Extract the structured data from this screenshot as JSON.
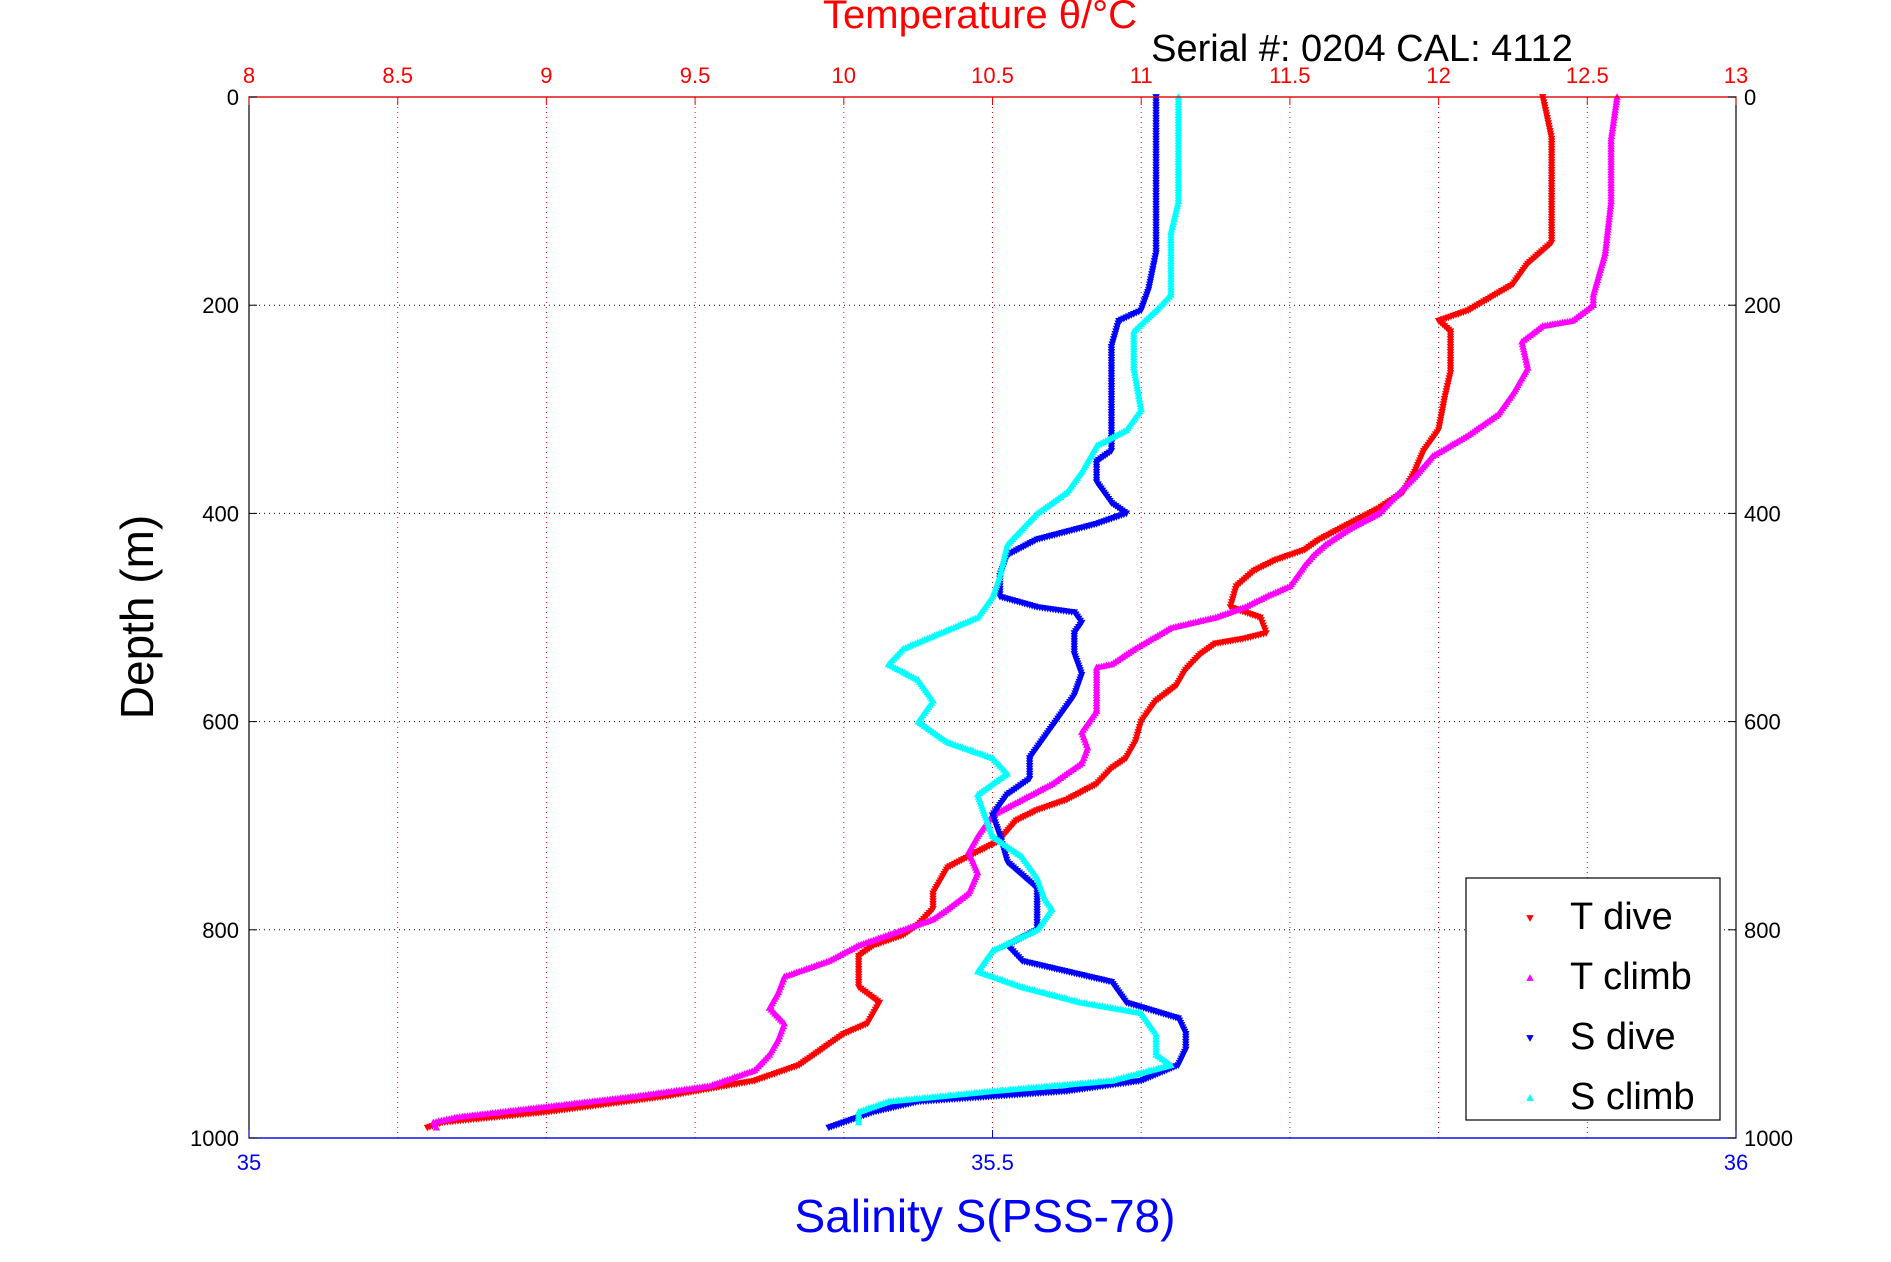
{
  "chart_data": {
    "type": "scatter",
    "title": "Temperature θ/°C",
    "subtitle": "Serial #: 0204  CAL: 4112",
    "ylabel": "Depth (m)",
    "xlabel_bottom": "Salinity S(PSS-78)",
    "xlabel_top": "Temperature θ/°C",
    "y_reversed": true,
    "ylim": [
      0,
      1000
    ],
    "x_top_lim": [
      8,
      13
    ],
    "x_bottom_lim": [
      35,
      36
    ],
    "grid": true,
    "legend_position": "bottom-right",
    "x_top_ticks": [
      "8",
      "8.5",
      "9",
      "9.5",
      "10",
      "10.5",
      "11",
      "11.5",
      "12",
      "12.5",
      "13"
    ],
    "x_bottom_ticks": [
      "35",
      "35.5",
      "36"
    ],
    "y_ticks": [
      "0",
      "200",
      "400",
      "600",
      "800",
      "1000"
    ],
    "colors": {
      "temperature_axis": "#ff0000",
      "salinity_axis": "#0000ff",
      "grid_vertical": "#ff0000",
      "grid_horizontal": "#000000"
    },
    "series": [
      {
        "name": "T dive",
        "axis": "temperature",
        "color": "#ff0000",
        "marker": "down-triangle",
        "points": [
          [
            12.35,
            0
          ],
          [
            12.38,
            40
          ],
          [
            12.38,
            100
          ],
          [
            12.38,
            140
          ],
          [
            12.3,
            160
          ],
          [
            12.25,
            180
          ],
          [
            12.1,
            205
          ],
          [
            12.0,
            215
          ],
          [
            12.04,
            225
          ],
          [
            12.04,
            245
          ],
          [
            12.04,
            265
          ],
          [
            12.02,
            290
          ],
          [
            12.0,
            320
          ],
          [
            11.95,
            340
          ],
          [
            11.92,
            360
          ],
          [
            11.88,
            380
          ],
          [
            11.8,
            395
          ],
          [
            11.7,
            410
          ],
          [
            11.6,
            425
          ],
          [
            11.55,
            435
          ],
          [
            11.45,
            445
          ],
          [
            11.38,
            455
          ],
          [
            11.32,
            470
          ],
          [
            11.3,
            490
          ],
          [
            11.4,
            500
          ],
          [
            11.42,
            515
          ],
          [
            11.35,
            520
          ],
          [
            11.25,
            525
          ],
          [
            11.2,
            535
          ],
          [
            11.15,
            550
          ],
          [
            11.12,
            565
          ],
          [
            11.05,
            580
          ],
          [
            11.0,
            600
          ],
          [
            10.98,
            620
          ],
          [
            10.95,
            635
          ],
          [
            10.9,
            645
          ],
          [
            10.85,
            660
          ],
          [
            10.75,
            675
          ],
          [
            10.65,
            685
          ],
          [
            10.58,
            695
          ],
          [
            10.52,
            715
          ],
          [
            10.45,
            725
          ],
          [
            10.35,
            740
          ],
          [
            10.3,
            765
          ],
          [
            10.3,
            780
          ],
          [
            10.25,
            795
          ],
          [
            10.2,
            805
          ],
          [
            10.1,
            815
          ],
          [
            10.05,
            825
          ],
          [
            10.05,
            840
          ],
          [
            10.05,
            855
          ],
          [
            10.12,
            870
          ],
          [
            10.08,
            890
          ],
          [
            10.0,
            900
          ],
          [
            9.95,
            910
          ],
          [
            9.9,
            920
          ],
          [
            9.85,
            930
          ],
          [
            9.7,
            945
          ],
          [
            9.4,
            960
          ],
          [
            9.0,
            975
          ],
          [
            8.65,
            985
          ],
          [
            8.6,
            990
          ]
        ]
      },
      {
        "name": "T climb",
        "axis": "temperature",
        "color": "#ff00ff",
        "marker": "up-triangle",
        "points": [
          [
            12.6,
            0
          ],
          [
            12.58,
            40
          ],
          [
            12.58,
            100
          ],
          [
            12.56,
            150
          ],
          [
            12.52,
            190
          ],
          [
            12.52,
            200
          ],
          [
            12.45,
            215
          ],
          [
            12.35,
            220
          ],
          [
            12.28,
            235
          ],
          [
            12.3,
            260
          ],
          [
            12.25,
            285
          ],
          [
            12.2,
            305
          ],
          [
            12.1,
            325
          ],
          [
            11.98,
            345
          ],
          [
            11.92,
            365
          ],
          [
            11.85,
            385
          ],
          [
            11.8,
            400
          ],
          [
            11.7,
            415
          ],
          [
            11.62,
            430
          ],
          [
            11.58,
            440
          ],
          [
            11.55,
            450
          ],
          [
            11.5,
            470
          ],
          [
            11.42,
            480
          ],
          [
            11.35,
            490
          ],
          [
            11.25,
            500
          ],
          [
            11.1,
            510
          ],
          [
            10.98,
            530
          ],
          [
            10.9,
            545
          ],
          [
            10.85,
            548
          ],
          [
            10.85,
            570
          ],
          [
            10.85,
            590
          ],
          [
            10.8,
            610
          ],
          [
            10.82,
            625
          ],
          [
            10.8,
            640
          ],
          [
            10.7,
            660
          ],
          [
            10.6,
            675
          ],
          [
            10.5,
            690
          ],
          [
            10.45,
            710
          ],
          [
            10.42,
            725
          ],
          [
            10.45,
            745
          ],
          [
            10.42,
            765
          ],
          [
            10.35,
            780
          ],
          [
            10.3,
            790
          ],
          [
            10.2,
            800
          ],
          [
            10.05,
            815
          ],
          [
            9.95,
            830
          ],
          [
            9.8,
            845
          ],
          [
            9.78,
            860
          ],
          [
            9.75,
            875
          ],
          [
            9.8,
            890
          ],
          [
            9.78,
            905
          ],
          [
            9.75,
            920
          ],
          [
            9.7,
            935
          ],
          [
            9.55,
            950
          ],
          [
            9.3,
            960
          ],
          [
            9.0,
            970
          ],
          [
            8.7,
            980
          ],
          [
            8.62,
            985
          ],
          [
            8.63,
            990
          ]
        ]
      },
      {
        "name": "S dive",
        "axis": "salinity",
        "color": "#0000ff",
        "marker": "down-triangle",
        "points": [
          [
            35.61,
            0
          ],
          [
            35.61,
            50
          ],
          [
            35.61,
            100
          ],
          [
            35.61,
            150
          ],
          [
            35.605,
            185
          ],
          [
            35.6,
            205
          ],
          [
            35.585,
            215
          ],
          [
            35.58,
            240
          ],
          [
            35.58,
            280
          ],
          [
            35.58,
            320
          ],
          [
            35.58,
            340
          ],
          [
            35.57,
            350
          ],
          [
            35.57,
            370
          ],
          [
            35.58,
            390
          ],
          [
            35.59,
            400
          ],
          [
            35.57,
            410
          ],
          [
            35.53,
            425
          ],
          [
            35.51,
            440
          ],
          [
            35.505,
            460
          ],
          [
            35.505,
            480
          ],
          [
            35.53,
            490
          ],
          [
            35.555,
            495
          ],
          [
            35.56,
            505
          ],
          [
            35.555,
            515
          ],
          [
            35.555,
            535
          ],
          [
            35.56,
            555
          ],
          [
            35.555,
            575
          ],
          [
            35.545,
            595
          ],
          [
            35.535,
            615
          ],
          [
            35.525,
            635
          ],
          [
            35.525,
            655
          ],
          [
            35.51,
            670
          ],
          [
            35.5,
            690
          ],
          [
            35.505,
            710
          ],
          [
            35.51,
            735
          ],
          [
            35.53,
            760
          ],
          [
            35.53,
            780
          ],
          [
            35.53,
            800
          ],
          [
            35.51,
            815
          ],
          [
            35.52,
            830
          ],
          [
            35.55,
            840
          ],
          [
            35.58,
            850
          ],
          [
            35.59,
            870
          ],
          [
            35.625,
            885
          ],
          [
            35.63,
            900
          ],
          [
            35.63,
            915
          ],
          [
            35.625,
            930
          ],
          [
            35.6,
            945
          ],
          [
            35.55,
            955
          ],
          [
            35.45,
            965
          ],
          [
            35.42,
            975
          ],
          [
            35.4,
            985
          ],
          [
            35.39,
            990
          ]
        ]
      },
      {
        "name": "S climb",
        "axis": "salinity",
        "color": "#00ffff",
        "marker": "up-triangle",
        "points": [
          [
            35.625,
            0
          ],
          [
            35.625,
            50
          ],
          [
            35.625,
            100
          ],
          [
            35.62,
            130
          ],
          [
            35.62,
            160
          ],
          [
            35.62,
            190
          ],
          [
            35.61,
            205
          ],
          [
            35.595,
            225
          ],
          [
            35.595,
            260
          ],
          [
            35.6,
            300
          ],
          [
            35.59,
            320
          ],
          [
            35.57,
            335
          ],
          [
            35.56,
            360
          ],
          [
            35.55,
            380
          ],
          [
            35.53,
            400
          ],
          [
            35.51,
            430
          ],
          [
            35.505,
            460
          ],
          [
            35.5,
            480
          ],
          [
            35.49,
            500
          ],
          [
            35.44,
            530
          ],
          [
            35.43,
            545
          ],
          [
            35.45,
            560
          ],
          [
            35.46,
            580
          ],
          [
            35.45,
            600
          ],
          [
            35.47,
            620
          ],
          [
            35.5,
            635
          ],
          [
            35.51,
            650
          ],
          [
            35.49,
            670
          ],
          [
            35.495,
            690
          ],
          [
            35.5,
            710
          ],
          [
            35.52,
            730
          ],
          [
            35.53,
            750
          ],
          [
            35.535,
            770
          ],
          [
            35.54,
            780
          ],
          [
            35.53,
            800
          ],
          [
            35.5,
            820
          ],
          [
            35.49,
            840
          ],
          [
            35.52,
            855
          ],
          [
            35.56,
            870
          ],
          [
            35.6,
            880
          ],
          [
            35.61,
            900
          ],
          [
            35.61,
            920
          ],
          [
            35.62,
            930
          ],
          [
            35.58,
            945
          ],
          [
            35.5,
            955
          ],
          [
            35.43,
            965
          ],
          [
            35.41,
            975
          ],
          [
            35.41,
            985
          ]
        ]
      }
    ]
  }
}
